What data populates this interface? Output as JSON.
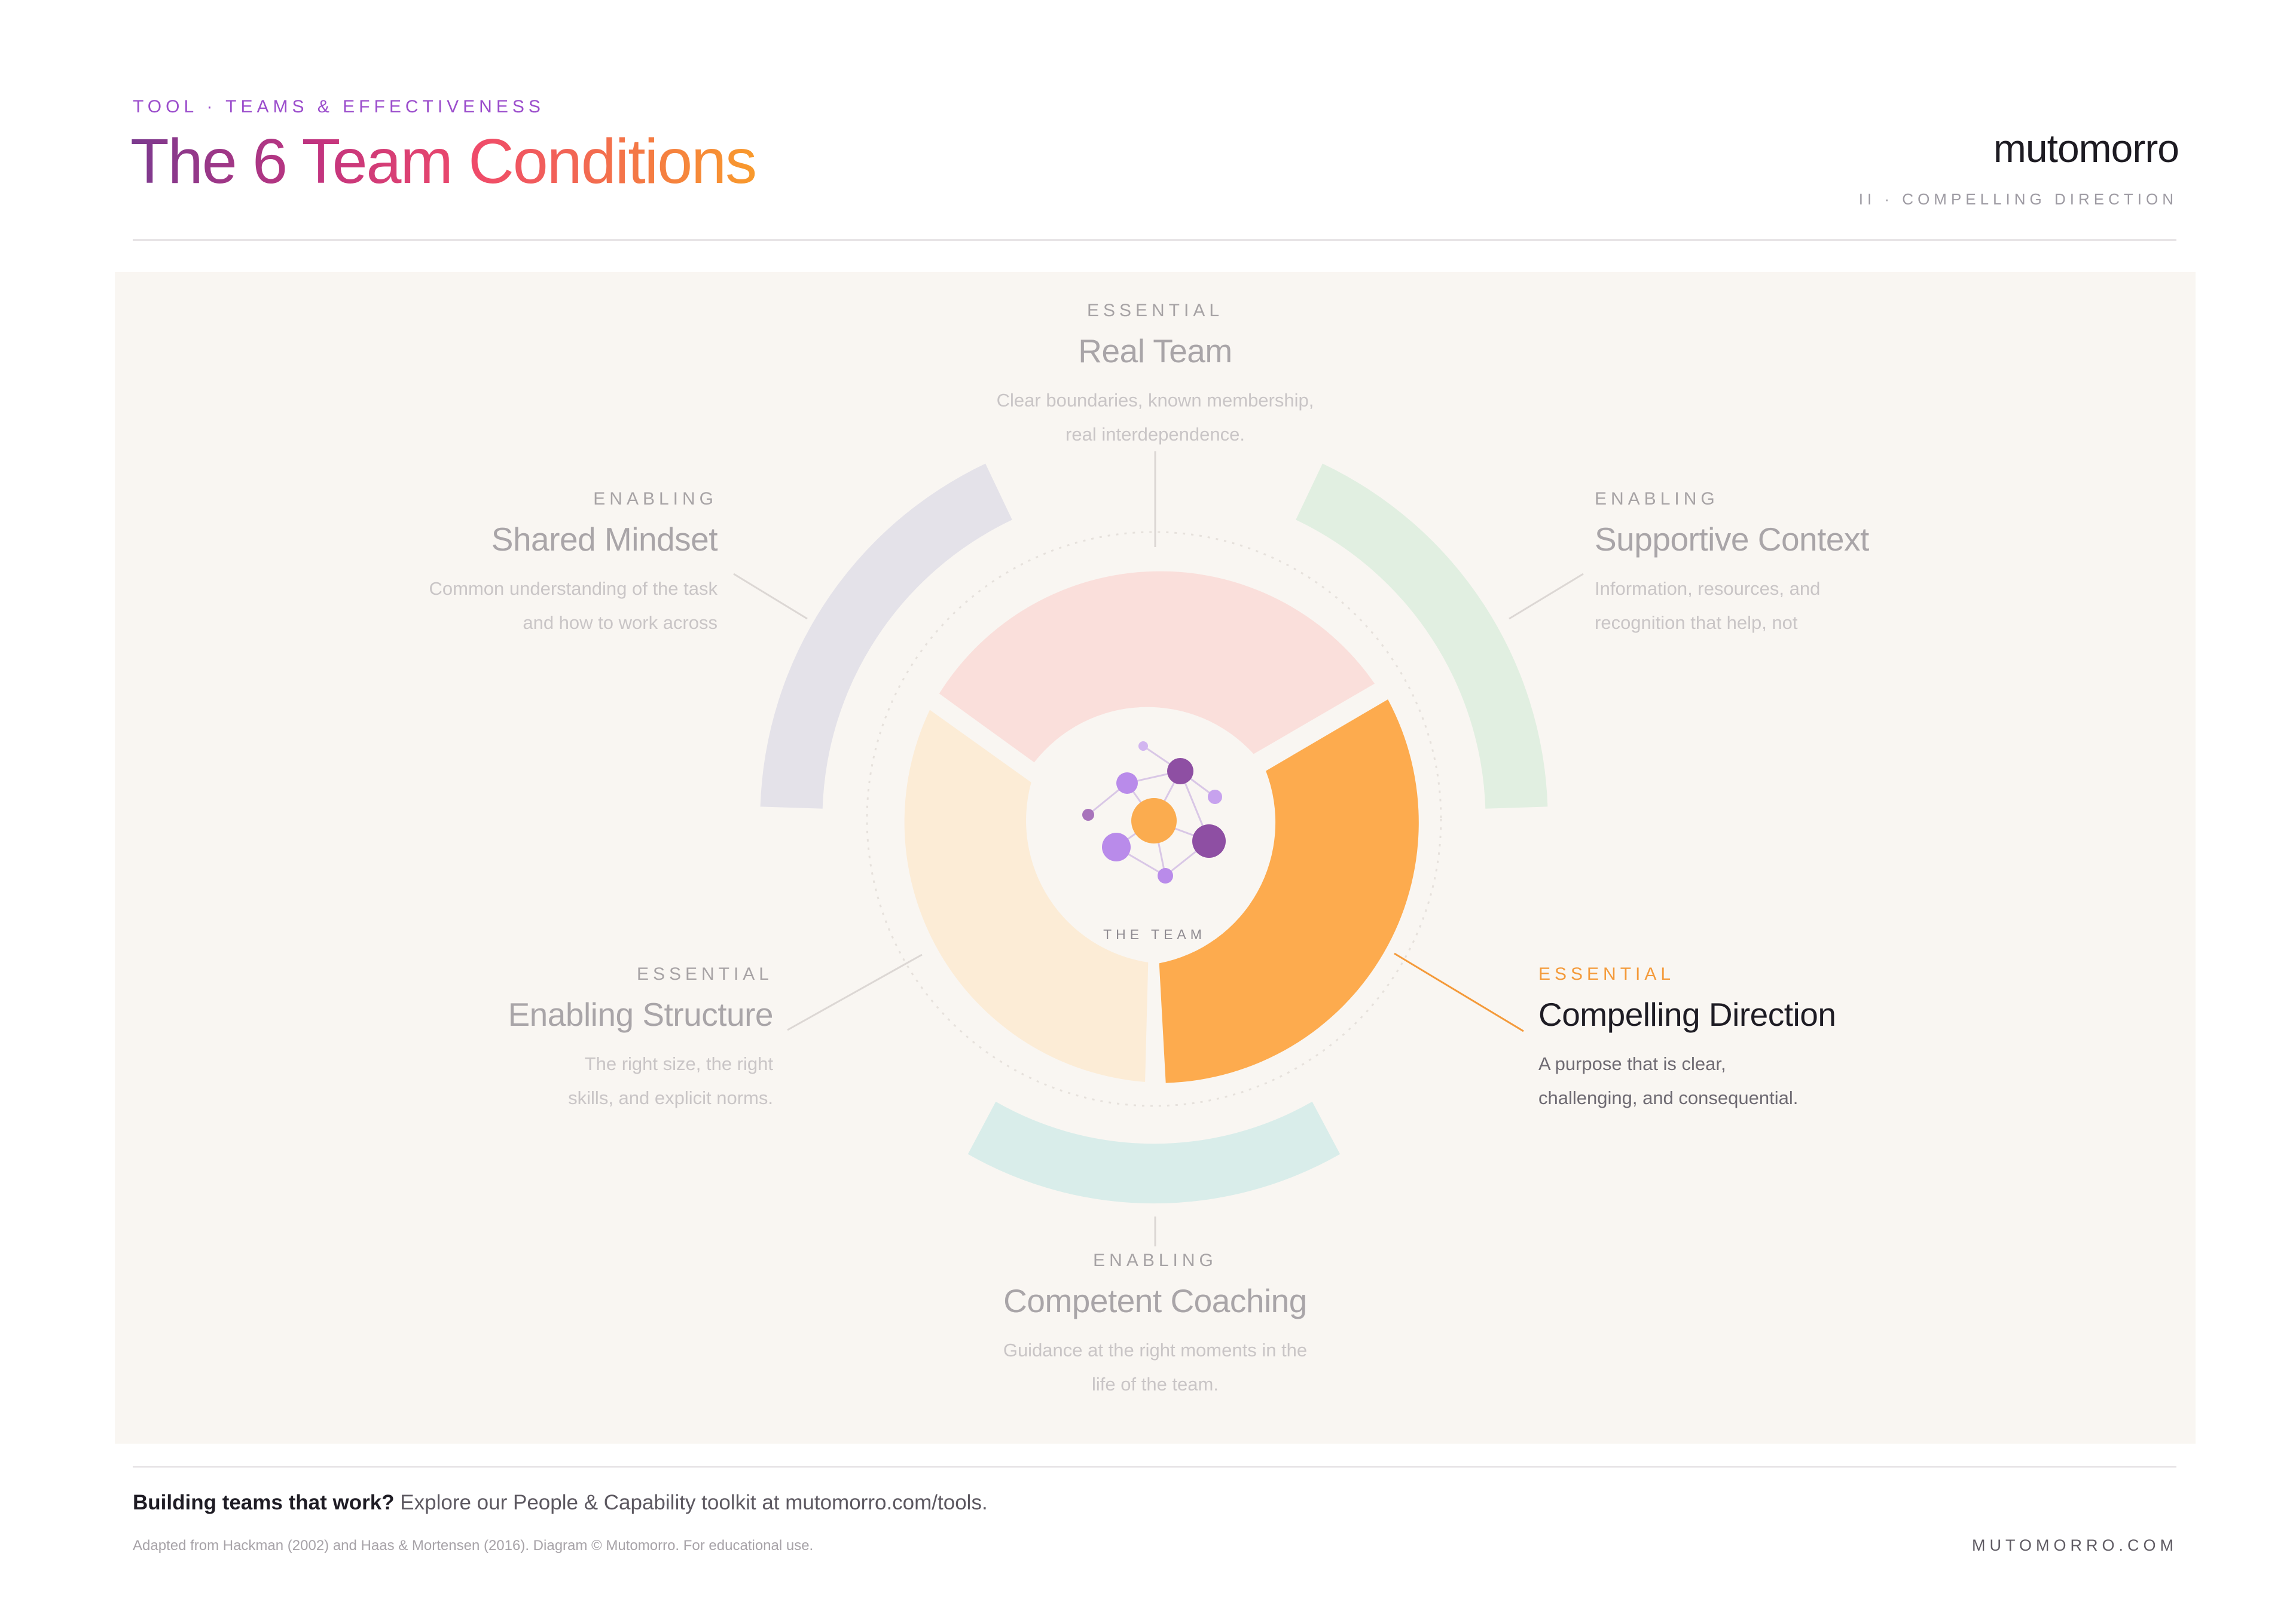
{
  "header": {
    "eyebrow": "TOOL · TEAMS & EFFECTIVENESS",
    "title": "The 6 Team Conditions",
    "brand": "mutomorro",
    "section": "II · COMPELLING DIRECTION"
  },
  "diagram": {
    "center_label": "THE TEAM",
    "active_condition": "Compelling Direction",
    "conditions": [
      {
        "tag": "ESSENTIAL",
        "name": "Real Team",
        "desc_lines": [
          "Clear boundaries, known membership,",
          "real interdependence."
        ],
        "color": "#fadfdb"
      },
      {
        "tag": "ENABLING",
        "name": "Shared Mindset",
        "desc_lines": [
          "Common understanding of the task",
          "and how to work across"
        ],
        "color": "#e4e2e9"
      },
      {
        "tag": "ENABLING",
        "name": "Supportive Context",
        "desc_lines": [
          "Information, resources, and",
          "recognition that help, not"
        ],
        "color": "#e1efe1"
      },
      {
        "tag": "ESSENTIAL",
        "name": "Enabling Structure",
        "desc_lines": [
          "The right size, the right",
          "skills, and explicit norms."
        ],
        "color": "#fcecd6"
      },
      {
        "tag": "ESSENTIAL",
        "name": "Compelling Direction",
        "desc_lines": [
          "A purpose that is clear,",
          "challenging, and consequential."
        ],
        "color": "#fdab4e"
      },
      {
        "tag": "ENABLING",
        "name": "Competent Coaching",
        "desc_lines": [
          "Guidance at the right moments in the",
          "life of the team."
        ],
        "color": "#d9edea"
      }
    ],
    "colors": {
      "panel": "#f9f6f2",
      "accent": "#f49a3a",
      "team_purple": "#8e4fa3",
      "team_lilac": "#b98bea",
      "team_orange": "#fbac4f"
    }
  },
  "footer": {
    "cta_bold": "Building teams that work?",
    "cta_rest": "Explore our People & Capability toolkit at mutomorro.com/tools.",
    "note": "Adapted from Hackman (2002) and Haas & Mortensen (2016). Diagram © Mutomorro. For educational use.",
    "url": "MUTOMORRO.COM"
  }
}
